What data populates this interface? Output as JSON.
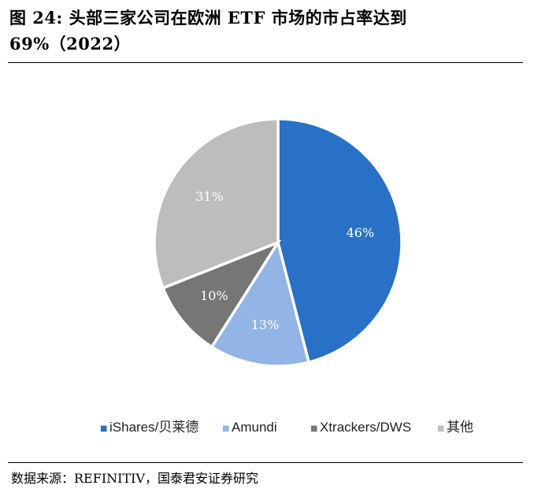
{
  "figure": {
    "title": "图 24: 头部三家公司在欧洲 ETF 市场的市占率达到 69%（2022）",
    "source": "数据来源：REFINITIV，国泰君安证券研究"
  },
  "chart_data": {
    "type": "pie",
    "title": "",
    "labels": [
      "iShares/贝莱德",
      "Amundi",
      "Xtrackers/DWS",
      "其他"
    ],
    "values": [
      46,
      13,
      10,
      31
    ],
    "value_labels": [
      "46%",
      "13%",
      "10%",
      "31%"
    ],
    "colors": [
      "#2971C6",
      "#93B4E6",
      "#767676",
      "#BDBDBD"
    ],
    "legend_position": "bottom",
    "legend_marker": "■",
    "start_angle_deg": 0,
    "direction": "clockwise"
  }
}
